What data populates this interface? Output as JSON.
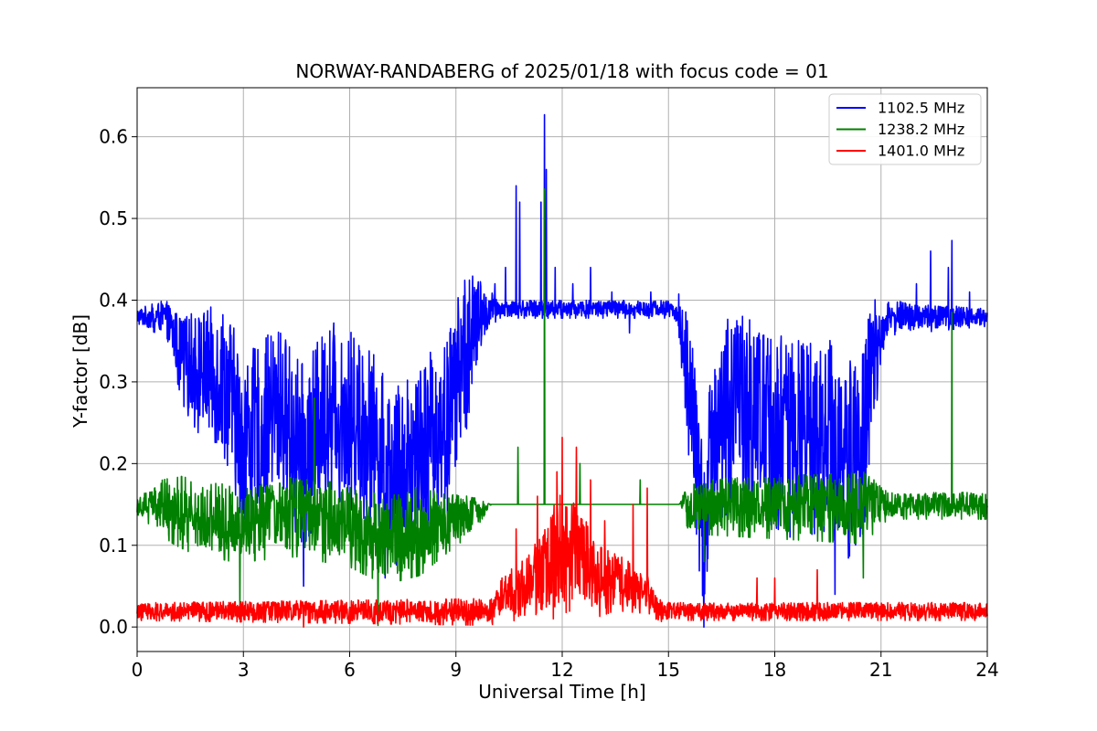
{
  "chart_data": {
    "type": "line",
    "title": "NORWAY-RANDABERG of 2025/01/18 with focus code = 01",
    "xlabel": "Universal Time [h]",
    "ylabel": "Y-factor [dB]",
    "xlim": [
      0,
      24
    ],
    "ylim": [
      -0.03,
      0.66
    ],
    "xticks": [
      "0",
      "3",
      "6",
      "9",
      "12",
      "15",
      "18",
      "21",
      "24"
    ],
    "yticks": [
      "0.0",
      "0.1",
      "0.2",
      "0.3",
      "0.4",
      "0.5",
      "0.6"
    ],
    "grid": true,
    "legend_position": "top-right",
    "series": [
      {
        "name": "1102.5 MHz",
        "color": "#0000ff",
        "profile": [
          [
            0,
            0.38
          ],
          [
            0.8,
            0.38
          ],
          [
            1.3,
            0.33
          ],
          [
            2.5,
            0.3
          ],
          [
            3.0,
            0.23
          ],
          [
            4.0,
            0.27
          ],
          [
            4.7,
            0.22
          ],
          [
            5.5,
            0.28
          ],
          [
            6.5,
            0.25
          ],
          [
            7.2,
            0.19
          ],
          [
            8.0,
            0.23
          ],
          [
            8.7,
            0.25
          ],
          [
            9.2,
            0.33
          ],
          [
            9.7,
            0.38
          ],
          [
            10.0,
            0.39
          ],
          [
            15.0,
            0.39
          ],
          [
            15.3,
            0.38
          ],
          [
            15.7,
            0.26
          ],
          [
            16.0,
            0.11
          ],
          [
            16.3,
            0.26
          ],
          [
            17.0,
            0.28
          ],
          [
            17.8,
            0.26
          ],
          [
            18.5,
            0.24
          ],
          [
            19.5,
            0.25
          ],
          [
            20.0,
            0.21
          ],
          [
            20.5,
            0.25
          ],
          [
            20.8,
            0.33
          ],
          [
            21.2,
            0.38
          ],
          [
            24,
            0.38
          ]
        ],
        "noise": [
          [
            0,
            0.01
          ],
          [
            0.8,
            0.02
          ],
          [
            1.5,
            0.06
          ],
          [
            2.6,
            0.1
          ],
          [
            9.3,
            0.1
          ],
          [
            9.8,
            0.03
          ],
          [
            10.2,
            0.01
          ],
          [
            15.2,
            0.01
          ],
          [
            15.5,
            0.07
          ],
          [
            16.3,
            0.11
          ],
          [
            20.7,
            0.11
          ],
          [
            21.0,
            0.02
          ],
          [
            24,
            0.01
          ]
        ],
        "min_points": [
          [
            2.9,
            0.14
          ],
          [
            4.7,
            0.05
          ],
          [
            7.0,
            0.06
          ],
          [
            16.0,
            0.0
          ],
          [
            19.7,
            0.04
          ]
        ],
        "peaks": [
          [
            10.1,
            0.42
          ],
          [
            10.4,
            0.44
          ],
          [
            10.7,
            0.54
          ],
          [
            10.8,
            0.52
          ],
          [
            11.4,
            0.52
          ],
          [
            11.5,
            0.627
          ],
          [
            11.55,
            0.56
          ],
          [
            11.8,
            0.44
          ],
          [
            12.3,
            0.42
          ],
          [
            12.8,
            0.44
          ],
          [
            13.4,
            0.41
          ],
          [
            13.9,
            0.36
          ],
          [
            14.5,
            0.41
          ],
          [
            22.0,
            0.42
          ],
          [
            22.4,
            0.46
          ],
          [
            22.9,
            0.44
          ],
          [
            23.0,
            0.473
          ],
          [
            23.5,
            0.41
          ]
        ]
      },
      {
        "name": "1238.2 MHz",
        "color": "#008000",
        "profile": [
          [
            0,
            0.15
          ],
          [
            1.0,
            0.15
          ],
          [
            1.5,
            0.14
          ],
          [
            2.8,
            0.13
          ],
          [
            4.5,
            0.14
          ],
          [
            6.0,
            0.13
          ],
          [
            7.0,
            0.11
          ],
          [
            8.5,
            0.13
          ],
          [
            9.5,
            0.14
          ],
          [
            10.0,
            0.15
          ],
          [
            24,
            0.15
          ]
        ],
        "noise": [
          [
            0,
            0.01
          ],
          [
            1.0,
            0.04
          ],
          [
            8.0,
            0.05
          ],
          [
            9.5,
            0.02
          ],
          [
            10.0,
            0.0
          ],
          [
            15.3,
            0.0
          ],
          [
            15.6,
            0.03
          ],
          [
            20.5,
            0.04
          ],
          [
            21.2,
            0.015
          ],
          [
            24,
            0.015
          ]
        ],
        "min_points": [
          [
            2.9,
            0.025
          ],
          [
            6.8,
            0.002
          ],
          [
            16.0,
            0.08
          ],
          [
            20.5,
            0.06
          ]
        ],
        "peaks": [
          [
            5.0,
            0.28
          ],
          [
            10.75,
            0.22
          ],
          [
            11.5,
            0.536
          ],
          [
            12.5,
            0.2
          ],
          [
            14.2,
            0.18
          ],
          [
            20.8,
            0.18
          ],
          [
            23.0,
            0.385
          ]
        ]
      },
      {
        "name": "1401.0 MHz",
        "color": "#ff0000",
        "profile": [
          [
            0,
            0.02
          ],
          [
            10.0,
            0.02
          ],
          [
            10.3,
            0.04
          ],
          [
            11.0,
            0.05
          ],
          [
            11.5,
            0.07
          ],
          [
            12.0,
            0.1
          ],
          [
            12.5,
            0.09
          ],
          [
            13.0,
            0.06
          ],
          [
            13.5,
            0.06
          ],
          [
            14.0,
            0.05
          ],
          [
            14.5,
            0.04
          ],
          [
            14.7,
            0.02
          ],
          [
            24,
            0.02
          ]
        ],
        "noise": [
          [
            0,
            0.01
          ],
          [
            10.0,
            0.015
          ],
          [
            11.0,
            0.04
          ],
          [
            12.0,
            0.07
          ],
          [
            13.0,
            0.04
          ],
          [
            14.5,
            0.02
          ],
          [
            15.0,
            0.01
          ],
          [
            24,
            0.01
          ]
        ],
        "min_points": [
          [
            4.7,
            0.0
          ],
          [
            7.3,
            0.005
          ]
        ],
        "peaks": [
          [
            10.7,
            0.12
          ],
          [
            11.3,
            0.16
          ],
          [
            11.85,
            0.19
          ],
          [
            12.0,
            0.232
          ],
          [
            12.4,
            0.22
          ],
          [
            12.8,
            0.18
          ],
          [
            13.2,
            0.13
          ],
          [
            14.0,
            0.15
          ],
          [
            14.4,
            0.17
          ],
          [
            17.5,
            0.06
          ],
          [
            18.0,
            0.06
          ],
          [
            19.2,
            0.07
          ]
        ]
      }
    ]
  }
}
